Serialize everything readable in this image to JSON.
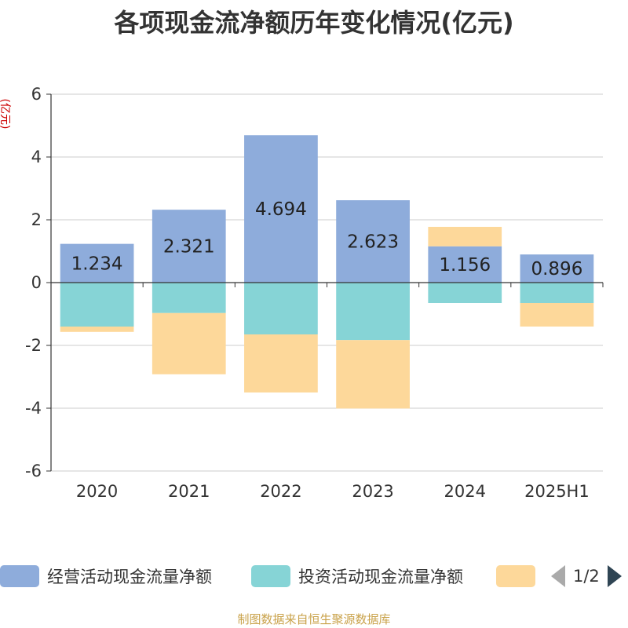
{
  "chart_data": {
    "type": "bar",
    "stacked": true,
    "title": "各项现金流净额历年变化情况(亿元)",
    "ylabel": "(亿元)",
    "categories": [
      "2020",
      "2021",
      "2022",
      "2023",
      "2024",
      "2025H1"
    ],
    "ylim": [
      -6,
      6
    ],
    "yticks": [
      6,
      4,
      2,
      0,
      -2,
      -4,
      -6
    ],
    "grid": true,
    "series": [
      {
        "name": "经营活动现金流量净额",
        "color": "#8eacdb",
        "values": [
          1.234,
          2.321,
          4.694,
          2.623,
          1.156,
          0.896
        ],
        "labels": [
          "1.234",
          "2.321",
          "4.694",
          "2.623",
          "1.156",
          "0.896"
        ]
      },
      {
        "name": "投资活动现金流量净额",
        "color": "#86d4d6",
        "values": [
          -1.4,
          -0.97,
          -1.65,
          -1.83,
          -0.65,
          -0.65
        ]
      },
      {
        "name": "",
        "color": "#fdd89a",
        "values": [
          -0.17,
          -1.95,
          -1.85,
          -2.18,
          0.62,
          -0.75
        ]
      }
    ],
    "legend_position": "bottom"
  },
  "legend": {
    "items": [
      "经营活动现金流量净额",
      "投资活动现金流量净额",
      ""
    ],
    "page": "1/2"
  },
  "source": "制图数据来自恒生聚源数据库"
}
